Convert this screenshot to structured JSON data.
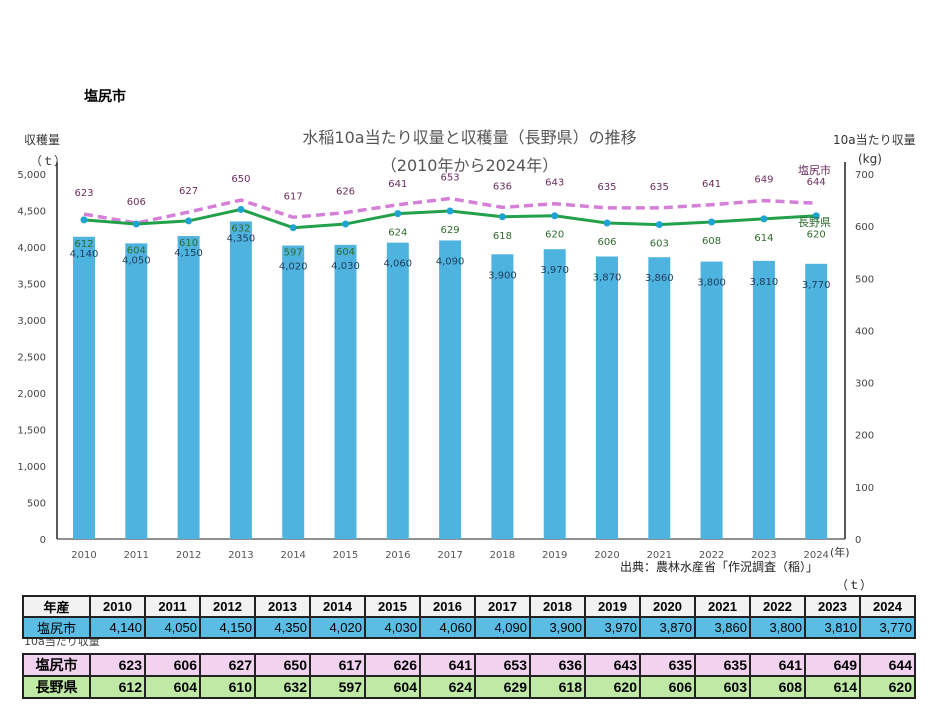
{
  "page": {
    "city_title": "塩尻市",
    "source": "出典：農林水産省「作況調査（稲）」",
    "table_unit": "（ｔ）",
    "yield_section_label": "10a当たり収量"
  },
  "chart_data": {
    "type": "bar+line",
    "title": "水稲10a当たり収量と収穫量（長野県）の推移",
    "subtitle": "（2010年から2024年）",
    "ylabel_left": "収穫量",
    "ylabel_left_unit": "（ｔ）",
    "ylabel_right": "10a当たり収量",
    "ylabel_right_unit": "(kg)",
    "xlabel_unit": "(年)",
    "categories": [
      "2010",
      "2011",
      "2012",
      "2013",
      "2014",
      "2015",
      "2016",
      "2017",
      "2018",
      "2019",
      "2020",
      "2021",
      "2022",
      "2023",
      "2024"
    ],
    "ylim_left": [
      0,
      5000
    ],
    "yticks_left": [
      "0",
      "500",
      "1,000",
      "1,500",
      "2,000",
      "2,500",
      "3,000",
      "3,500",
      "4,000",
      "4,500",
      "5,000"
    ],
    "ylim_right": [
      0,
      700
    ],
    "yticks_right": [
      "0",
      "100",
      "200",
      "300",
      "400",
      "500",
      "600",
      "700"
    ],
    "grid": false,
    "bars": {
      "name": "収穫量",
      "axis": "left",
      "color": "#4fb3e0",
      "values": [
        4140,
        4050,
        4150,
        4350,
        4020,
        4030,
        4060,
        4090,
        3900,
        3970,
        3870,
        3860,
        3800,
        3810,
        3770
      ],
      "labels": [
        "4,140",
        "4,050",
        "4,150",
        "4,350",
        "4,020",
        "4,030",
        "4,060",
        "4,090",
        "3,900",
        "3,970",
        "3,870",
        "3,860",
        "3,800",
        "3,810",
        "3,770"
      ]
    },
    "series": [
      {
        "name": "塩尻市",
        "axis": "right",
        "style": "dashed",
        "color": "#d57fd8",
        "label_color": "#6a2d5e",
        "values": [
          623,
          606,
          627,
          650,
          617,
          626,
          641,
          653,
          636,
          643,
          635,
          635,
          641,
          649,
          644
        ]
      },
      {
        "name": "長野県",
        "axis": "right",
        "style": "solid",
        "color": "#22a04a",
        "marker_color": "#1fa3d0",
        "label_color": "#2f6b2f",
        "values": [
          612,
          604,
          610,
          632,
          597,
          604,
          624,
          629,
          618,
          620,
          606,
          603,
          608,
          614,
          620
        ]
      }
    ]
  },
  "table": {
    "header_label": "年産",
    "years": [
      "2010",
      "2011",
      "2012",
      "2013",
      "2014",
      "2015",
      "2016",
      "2017",
      "2018",
      "2019",
      "2020",
      "2021",
      "2022",
      "2023",
      "2024"
    ],
    "rows": [
      {
        "label": "塩尻市",
        "values": [
          "4,140",
          "4,050",
          "4,150",
          "4,350",
          "4,020",
          "4,030",
          "4,060",
          "4,090",
          "3,900",
          "3,970",
          "3,870",
          "3,860",
          "3,800",
          "3,810",
          "3,770"
        ]
      },
      {
        "label": "塩尻市",
        "values": [
          "623",
          "606",
          "627",
          "650",
          "617",
          "626",
          "641",
          "653",
          "636",
          "643",
          "635",
          "635",
          "641",
          "649",
          "644"
        ]
      },
      {
        "label": "長野県",
        "values": [
          "612",
          "604",
          "610",
          "632",
          "597",
          "604",
          "624",
          "629",
          "618",
          "620",
          "606",
          "603",
          "608",
          "614",
          "620"
        ]
      }
    ]
  }
}
